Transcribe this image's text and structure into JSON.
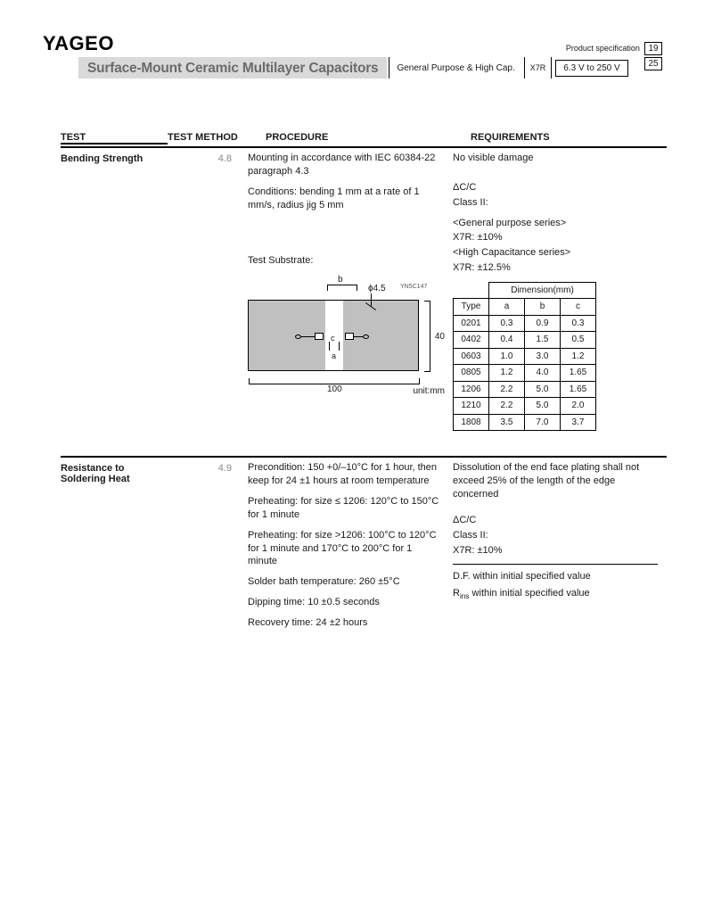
{
  "header": {
    "brand": "YAGEO",
    "product_spec_label": "Product specification",
    "page_current": "19",
    "page_total": "25",
    "title": "Surface-Mount Ceramic Multilayer Capacitors",
    "subtitle": "General Purpose & High Cap.",
    "code": "X7R",
    "voltage": "6.3 V to 250 V"
  },
  "columns": {
    "test": "TEST",
    "method": "TEST METHOD",
    "procedure": "PROCEDURE",
    "requirements": "REQUIREMENTS"
  },
  "tests": [
    {
      "name": "Bending Strength",
      "method": "4.8",
      "procedure": {
        "p1": "Mounting in accordance with IEC 60384-22 paragraph 4.3",
        "p2": "Conditions: bending 1 mm at a rate of 1 mm/s, radius jig 5 mm",
        "substrate_label": "Test Substrate:",
        "diagram": {
          "b_label": "b",
          "phi_label": "ϕ4.5",
          "yn_code": "YN5C147",
          "width_label": "100",
          "height_label": "40",
          "c_label": "c",
          "a_label": "a",
          "unit": "unit:mm"
        }
      },
      "requirements": {
        "r1": "No visible damage",
        "r2": "ΔC/C",
        "r3": "Class II:",
        "r4": "<General purpose series>",
        "r5": "X7R: ±10%",
        "r6": "<High Capacitance series>",
        "r7": "X7R: ±12.5%",
        "dim_table": {
          "header_span": "Dimension(mm)",
          "cols": [
            "Type",
            "a",
            "b",
            "c"
          ],
          "rows": [
            [
              "0201",
              "0.3",
              "0.9",
              "0.3"
            ],
            [
              "0402",
              "0.4",
              "1.5",
              "0.5"
            ],
            [
              "0603",
              "1.0",
              "3.0",
              "1.2"
            ],
            [
              "0805",
              "1.2",
              "4.0",
              "1.65"
            ],
            [
              "1206",
              "2.2",
              "5.0",
              "1.65"
            ],
            [
              "1210",
              "2.2",
              "5.0",
              "2.0"
            ],
            [
              "1808",
              "3.5",
              "7.0",
              "3.7"
            ]
          ]
        }
      }
    },
    {
      "name": "Resistance to Soldering Heat",
      "method": "4.9",
      "procedure": {
        "p1": "Precondition: 150 +0/–10°C for 1 hour, then keep for 24 ±1 hours at room temperature",
        "p2": "Preheating: for size ≤ 1206: 120°C to 150°C for 1 minute",
        "p3": "Preheating: for size >1206: 100°C to 120°C for 1 minute and 170°C to 200°C for 1 minute",
        "p4": "Solder bath temperature: 260 ±5°C",
        "p5": "Dipping time: 10 ±0.5 seconds",
        "p6": "Recovery time: 24 ±2 hours"
      },
      "requirements": {
        "r1": "Dissolution of the end face plating shall not exceed 25% of the length of the edge concerned",
        "r2": "ΔC/C",
        "r3": "Class II:",
        "r4": "X7R: ±10%",
        "r5_pre": "D.F. within initial specified value",
        "r6_pre": "R",
        "r6_sub": "ins",
        "r6_post": " within initial specified value"
      }
    }
  ]
}
